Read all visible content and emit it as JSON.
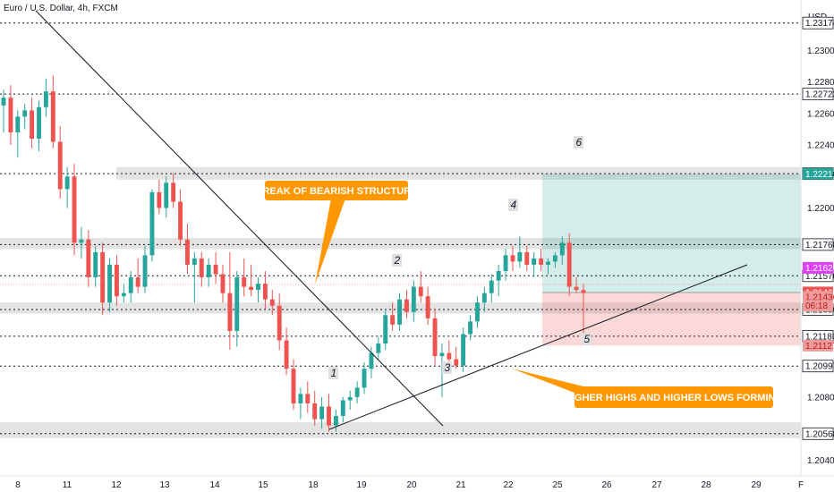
{
  "header": {
    "symbol_title": "Euro / U.S. Dollar, 4h, FXCM",
    "currency": "USD"
  },
  "chart_data": {
    "type": "candlestick",
    "ylim": [
      1.203,
      1.2332
    ],
    "grid": false,
    "x_ticks": [
      "8",
      "11",
      "12",
      "13",
      "14",
      "15",
      "18",
      "19",
      "20",
      "21",
      "22",
      "25",
      "26",
      "27",
      "28",
      "29",
      "F"
    ],
    "y_ticks": [
      "1.23000",
      "1.22800",
      "1.22600",
      "1.22400",
      "1.22000",
      "1.20800",
      "1.20400"
    ],
    "horizontal_levels": [
      {
        "price": 1.23174,
        "label": "1.23174",
        "color": "#ffffff",
        "text": "#131722"
      },
      {
        "price": 1.22723,
        "label": "1.22723",
        "color": "#ffffff",
        "text": "#131722"
      },
      {
        "price": 1.22218,
        "label": "1.22218",
        "color": "#ffffff",
        "text": "#131722"
      },
      {
        "price": 1.21768,
        "label": "1.21768",
        "color": "#ffffff",
        "text": "#131722"
      },
      {
        "price": 1.2157,
        "label": "1.21570",
        "color": "#ffffff",
        "text": "#131722"
      },
      {
        "price": 1.21356,
        "label": "1.21356",
        "color": "#ffffff",
        "text": "#131722"
      },
      {
        "price": 1.21186,
        "label": "1.21186",
        "color": "#ffffff",
        "text": "#131722"
      },
      {
        "price": 1.20997,
        "label": "1.20997",
        "color": "#ffffff",
        "text": "#131722"
      },
      {
        "price": 1.20568,
        "label": "1.20568",
        "color": "#ffffff",
        "text": "#131722"
      }
    ],
    "price_tags": [
      {
        "price": 1.22217,
        "label": "1.22217",
        "color": "#26a69a",
        "text": "#ffffff"
      },
      {
        "price": 1.2162,
        "label": "1.21620",
        "color": "#e040fb",
        "text": "#ffffff"
      },
      {
        "price": 1.21464,
        "label": "1.21464",
        "color": "#ef5350",
        "text": "#ffffff"
      },
      {
        "price": 1.21436,
        "label": "1.21436",
        "color": "#ef9a9a",
        "text": "#b71c1c"
      },
      {
        "price": 1.2138,
        "label": "06:18",
        "color": "#ef9a9a",
        "text": "#b71c1c"
      },
      {
        "price": 1.21127,
        "label": "1.21127",
        "color": "#ef9a9a",
        "text": "#b71c1c"
      }
    ],
    "zones": [
      {
        "from": 1.2218,
        "to": 1.2226
      },
      {
        "from": 1.2174,
        "to": 1.2181
      },
      {
        "from": 1.2133,
        "to": 1.214
      },
      {
        "from": 1.2054,
        "to": 1.2064
      }
    ],
    "position": {
      "entry": 1.21464,
      "target": 1.22217,
      "stop": 1.21127
    },
    "wave_labels": [
      "1",
      "2",
      "3",
      "4",
      "5",
      "6"
    ],
    "annotations": [
      "BREAK OF BEARISH STRUCTURE",
      "HIGHER HIGHS AND HIGHER LOWS FORMING"
    ],
    "candles": [
      {
        "o": 1.2265,
        "h": 1.2275,
        "l": 1.2248,
        "c": 1.227
      },
      {
        "o": 1.227,
        "h": 1.2278,
        "l": 1.224,
        "c": 1.2248
      },
      {
        "o": 1.2248,
        "h": 1.2262,
        "l": 1.2232,
        "c": 1.2258
      },
      {
        "o": 1.2258,
        "h": 1.2266,
        "l": 1.225,
        "c": 1.2262
      },
      {
        "o": 1.2262,
        "h": 1.227,
        "l": 1.2238,
        "c": 1.2244
      },
      {
        "o": 1.2244,
        "h": 1.2268,
        "l": 1.2236,
        "c": 1.2264
      },
      {
        "o": 1.2264,
        "h": 1.2282,
        "l": 1.2258,
        "c": 1.2274
      },
      {
        "o": 1.2274,
        "h": 1.2284,
        "l": 1.2238,
        "c": 1.2242
      },
      {
        "o": 1.2242,
        "h": 1.2252,
        "l": 1.2206,
        "c": 1.2212
      },
      {
        "o": 1.2212,
        "h": 1.2226,
        "l": 1.22,
        "c": 1.222
      },
      {
        "o": 1.222,
        "h": 1.2228,
        "l": 1.217,
        "c": 1.2178
      },
      {
        "o": 1.2178,
        "h": 1.2188,
        "l": 1.2168,
        "c": 1.218
      },
      {
        "o": 1.218,
        "h": 1.2186,
        "l": 1.215,
        "c": 1.2156
      },
      {
        "o": 1.2156,
        "h": 1.2176,
        "l": 1.215,
        "c": 1.2172
      },
      {
        "o": 1.2172,
        "h": 1.2178,
        "l": 1.2132,
        "c": 1.214
      },
      {
        "o": 1.214,
        "h": 1.2168,
        "l": 1.2134,
        "c": 1.2164
      },
      {
        "o": 1.2164,
        "h": 1.217,
        "l": 1.2138,
        "c": 1.2144
      },
      {
        "o": 1.2144,
        "h": 1.2152,
        "l": 1.214,
        "c": 1.2146
      },
      {
        "o": 1.2146,
        "h": 1.216,
        "l": 1.214,
        "c": 1.2156
      },
      {
        "o": 1.2156,
        "h": 1.2168,
        "l": 1.2146,
        "c": 1.215
      },
      {
        "o": 1.215,
        "h": 1.2176,
        "l": 1.2146,
        "c": 1.217
      },
      {
        "o": 1.217,
        "h": 1.2212,
        "l": 1.2166,
        "c": 1.221
      },
      {
        "o": 1.221,
        "h": 1.2218,
        "l": 1.2196,
        "c": 1.22
      },
      {
        "o": 1.22,
        "h": 1.222,
        "l": 1.2194,
        "c": 1.2216
      },
      {
        "o": 1.2216,
        "h": 1.2222,
        "l": 1.22,
        "c": 1.2204
      },
      {
        "o": 1.2204,
        "h": 1.2212,
        "l": 1.2176,
        "c": 1.218
      },
      {
        "o": 1.218,
        "h": 1.219,
        "l": 1.2158,
        "c": 1.2164
      },
      {
        "o": 1.2164,
        "h": 1.2172,
        "l": 1.214,
        "c": 1.2168
      },
      {
        "o": 1.2168,
        "h": 1.2172,
        "l": 1.215,
        "c": 1.2156
      },
      {
        "o": 1.2156,
        "h": 1.2168,
        "l": 1.215,
        "c": 1.2164
      },
      {
        "o": 1.2164,
        "h": 1.2172,
        "l": 1.2152,
        "c": 1.2158
      },
      {
        "o": 1.2158,
        "h": 1.2164,
        "l": 1.214,
        "c": 1.2146
      },
      {
        "o": 1.2146,
        "h": 1.2172,
        "l": 1.211,
        "c": 1.2122
      },
      {
        "o": 1.2122,
        "h": 1.216,
        "l": 1.2112,
        "c": 1.2156
      },
      {
        "o": 1.2156,
        "h": 1.2168,
        "l": 1.2144,
        "c": 1.215
      },
      {
        "o": 1.215,
        "h": 1.2164,
        "l": 1.2144,
        "c": 1.2148
      },
      {
        "o": 1.2148,
        "h": 1.2156,
        "l": 1.214,
        "c": 1.2152
      },
      {
        "o": 1.2152,
        "h": 1.216,
        "l": 1.2136,
        "c": 1.2142
      },
      {
        "o": 1.2142,
        "h": 1.2148,
        "l": 1.2132,
        "c": 1.2138
      },
      {
        "o": 1.2138,
        "h": 1.2146,
        "l": 1.211,
        "c": 1.2116
      },
      {
        "o": 1.2116,
        "h": 1.2124,
        "l": 1.2094,
        "c": 1.2098
      },
      {
        "o": 1.2098,
        "h": 1.2104,
        "l": 1.2072,
        "c": 1.2076
      },
      {
        "o": 1.2076,
        "h": 1.2086,
        "l": 1.2066,
        "c": 1.2082
      },
      {
        "o": 1.2082,
        "h": 1.209,
        "l": 1.207,
        "c": 1.2076
      },
      {
        "o": 1.2076,
        "h": 1.2084,
        "l": 1.2062,
        "c": 1.2066
      },
      {
        "o": 1.2066,
        "h": 1.208,
        "l": 1.206,
        "c": 1.2074
      },
      {
        "o": 1.2074,
        "h": 1.2082,
        "l": 1.2058,
        "c": 1.2062
      },
      {
        "o": 1.2062,
        "h": 1.2072,
        "l": 1.2058,
        "c": 1.2068
      },
      {
        "o": 1.2068,
        "h": 1.208,
        "l": 1.2064,
        "c": 1.2078
      },
      {
        "o": 1.2078,
        "h": 1.2084,
        "l": 1.2072,
        "c": 1.208
      },
      {
        "o": 1.208,
        "h": 1.209,
        "l": 1.2076,
        "c": 1.2086
      },
      {
        "o": 1.2086,
        "h": 1.2102,
        "l": 1.2082,
        "c": 1.2098
      },
      {
        "o": 1.2098,
        "h": 1.2112,
        "l": 1.2092,
        "c": 1.2108
      },
      {
        "o": 1.2108,
        "h": 1.2118,
        "l": 1.2104,
        "c": 1.2114
      },
      {
        "o": 1.2114,
        "h": 1.2136,
        "l": 1.211,
        "c": 1.2132
      },
      {
        "o": 1.2132,
        "h": 1.214,
        "l": 1.2122,
        "c": 1.2126
      },
      {
        "o": 1.2126,
        "h": 1.2146,
        "l": 1.2122,
        "c": 1.2142
      },
      {
        "o": 1.2142,
        "h": 1.2148,
        "l": 1.213,
        "c": 1.2134
      },
      {
        "o": 1.2134,
        "h": 1.2154,
        "l": 1.2128,
        "c": 1.215
      },
      {
        "o": 1.215,
        "h": 1.216,
        "l": 1.214,
        "c": 1.2144
      },
      {
        "o": 1.2144,
        "h": 1.215,
        "l": 1.2126,
        "c": 1.213
      },
      {
        "o": 1.213,
        "h": 1.2136,
        "l": 1.21,
        "c": 1.2106
      },
      {
        "o": 1.2106,
        "h": 1.2114,
        "l": 1.208,
        "c": 1.2108
      },
      {
        "o": 1.2108,
        "h": 1.2116,
        "l": 1.2096,
        "c": 1.2104
      },
      {
        "o": 1.2104,
        "h": 1.2112,
        "l": 1.2098,
        "c": 1.21
      },
      {
        "o": 1.21,
        "h": 1.2124,
        "l": 1.2096,
        "c": 1.212
      },
      {
        "o": 1.212,
        "h": 1.2132,
        "l": 1.2116,
        "c": 1.2128
      },
      {
        "o": 1.2128,
        "h": 1.2144,
        "l": 1.2124,
        "c": 1.214
      },
      {
        "o": 1.214,
        "h": 1.215,
        "l": 1.2134,
        "c": 1.2146
      },
      {
        "o": 1.2146,
        "h": 1.2158,
        "l": 1.214,
        "c": 1.2154
      },
      {
        "o": 1.2154,
        "h": 1.2164,
        "l": 1.2144,
        "c": 1.216
      },
      {
        "o": 1.216,
        "h": 1.2174,
        "l": 1.2154,
        "c": 1.217
      },
      {
        "o": 1.217,
        "h": 1.2176,
        "l": 1.216,
        "c": 1.2166
      },
      {
        "o": 1.2166,
        "h": 1.2182,
        "l": 1.2162,
        "c": 1.2172
      },
      {
        "o": 1.2172,
        "h": 1.2176,
        "l": 1.216,
        "c": 1.2164
      },
      {
        "o": 1.2164,
        "h": 1.2172,
        "l": 1.2156,
        "c": 1.2168
      },
      {
        "o": 1.2168,
        "h": 1.2174,
        "l": 1.216,
        "c": 1.2164
      },
      {
        "o": 1.2164,
        "h": 1.2168,
        "l": 1.2158,
        "c": 1.2166
      },
      {
        "o": 1.2166,
        "h": 1.2172,
        "l": 1.2162,
        "c": 1.217
      },
      {
        "o": 1.217,
        "h": 1.2182,
        "l": 1.2164,
        "c": 1.2178
      },
      {
        "o": 1.2178,
        "h": 1.2184,
        "l": 1.2144,
        "c": 1.215
      },
      {
        "o": 1.215,
        "h": 1.2156,
        "l": 1.2146,
        "c": 1.2148
      },
      {
        "o": 1.2148,
        "h": 1.2152,
        "l": 1.212,
        "c": 1.2146
      }
    ]
  }
}
